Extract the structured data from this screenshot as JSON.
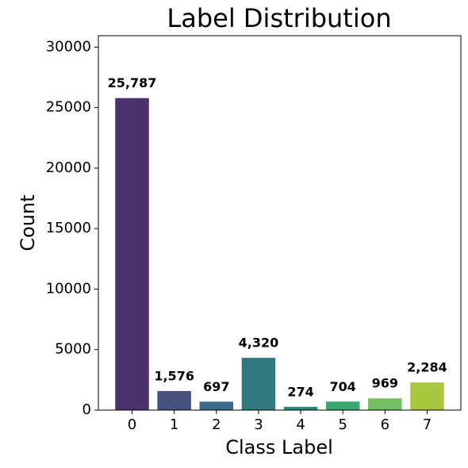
{
  "chart_data": {
    "type": "bar",
    "title": "Label Distribution",
    "xlabel": "Class Label",
    "ylabel": "Count",
    "categories": [
      "0",
      "1",
      "2",
      "3",
      "4",
      "5",
      "6",
      "7"
    ],
    "values": [
      25787,
      1576,
      697,
      4320,
      274,
      704,
      969,
      2284
    ],
    "value_labels": [
      "25,787",
      "1,576",
      "697",
      "4,320",
      "274",
      "704",
      "969",
      "2,284"
    ],
    "colors": [
      "#4a326c",
      "#46507e",
      "#3b6b8a",
      "#307a7f",
      "#2a8a7a",
      "#3ca66f",
      "#72c060",
      "#a8c63e"
    ],
    "ylim": [
      0,
      30944
    ],
    "yticks": [
      0,
      5000,
      10000,
      15000,
      20000,
      25000,
      30000
    ],
    "grid": false
  }
}
